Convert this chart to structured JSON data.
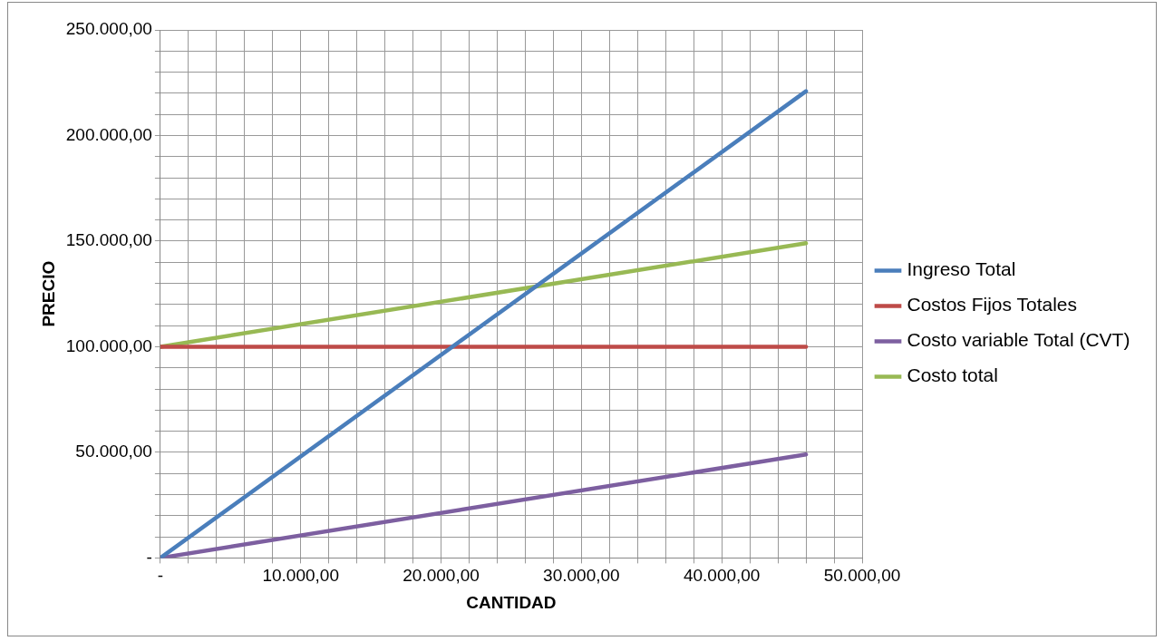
{
  "chart_data": {
    "type": "line",
    "xlabel": "CANTIDAD",
    "ylabel": "PRECIO",
    "x": [
      0,
      46000
    ],
    "series": [
      {
        "name": "Ingreso Total",
        "color": "#4a7ebb",
        "values": [
          0,
          221000
        ]
      },
      {
        "name": "Costos Fijos Totales",
        "color": "#be4b48",
        "values": [
          100000,
          100000
        ]
      },
      {
        "name": "Costo variable Total (CVT)",
        "color": "#7d5fa0",
        "values": [
          0,
          49000
        ]
      },
      {
        "name": "Costo total",
        "color": "#98b954",
        "values": [
          100000,
          149000
        ]
      }
    ],
    "xlim": [
      0,
      50000
    ],
    "xticks": [
      {
        "value": 0,
        "label": "-"
      },
      {
        "value": 2000,
        "label": null
      },
      {
        "value": 4000,
        "label": null
      },
      {
        "value": 6000,
        "label": null
      },
      {
        "value": 8000,
        "label": null
      },
      {
        "value": 10000,
        "label": "10.000,00"
      },
      {
        "value": 12000,
        "label": null
      },
      {
        "value": 14000,
        "label": null
      },
      {
        "value": 16000,
        "label": null
      },
      {
        "value": 18000,
        "label": null
      },
      {
        "value": 20000,
        "label": "20.000,00"
      },
      {
        "value": 22000,
        "label": null
      },
      {
        "value": 24000,
        "label": null
      },
      {
        "value": 26000,
        "label": null
      },
      {
        "value": 28000,
        "label": null
      },
      {
        "value": 30000,
        "label": "30.000,00"
      },
      {
        "value": 32000,
        "label": null
      },
      {
        "value": 34000,
        "label": null
      },
      {
        "value": 36000,
        "label": null
      },
      {
        "value": 38000,
        "label": null
      },
      {
        "value": 40000,
        "label": "40.000,00"
      },
      {
        "value": 42000,
        "label": null
      },
      {
        "value": 44000,
        "label": null
      },
      {
        "value": 46000,
        "label": null
      },
      {
        "value": 48000,
        "label": null
      },
      {
        "value": 50000,
        "label": "50.000,00"
      }
    ],
    "ylim": [
      0,
      250000
    ],
    "yticks": [
      {
        "value": 0,
        "label": "-"
      },
      {
        "value": 10000,
        "label": null
      },
      {
        "value": 20000,
        "label": null
      },
      {
        "value": 30000,
        "label": null
      },
      {
        "value": 40000,
        "label": null
      },
      {
        "value": 50000,
        "label": "50.000,00"
      },
      {
        "value": 60000,
        "label": null
      },
      {
        "value": 70000,
        "label": null
      },
      {
        "value": 80000,
        "label": null
      },
      {
        "value": 90000,
        "label": null
      },
      {
        "value": 100000,
        "label": "100.000,00"
      },
      {
        "value": 110000,
        "label": null
      },
      {
        "value": 120000,
        "label": null
      },
      {
        "value": 130000,
        "label": null
      },
      {
        "value": 140000,
        "label": null
      },
      {
        "value": 150000,
        "label": "150.000,00"
      },
      {
        "value": 160000,
        "label": null
      },
      {
        "value": 170000,
        "label": null
      },
      {
        "value": 180000,
        "label": null
      },
      {
        "value": 190000,
        "label": null
      },
      {
        "value": 200000,
        "label": "200.000,00"
      },
      {
        "value": 210000,
        "label": null
      },
      {
        "value": 220000,
        "label": null
      },
      {
        "value": 230000,
        "label": null
      },
      {
        "value": 240000,
        "label": null
      },
      {
        "value": 250000,
        "label": "250.000,00"
      }
    ],
    "grid": true,
    "legend": "right",
    "marker": "none",
    "line_style": "solid"
  }
}
